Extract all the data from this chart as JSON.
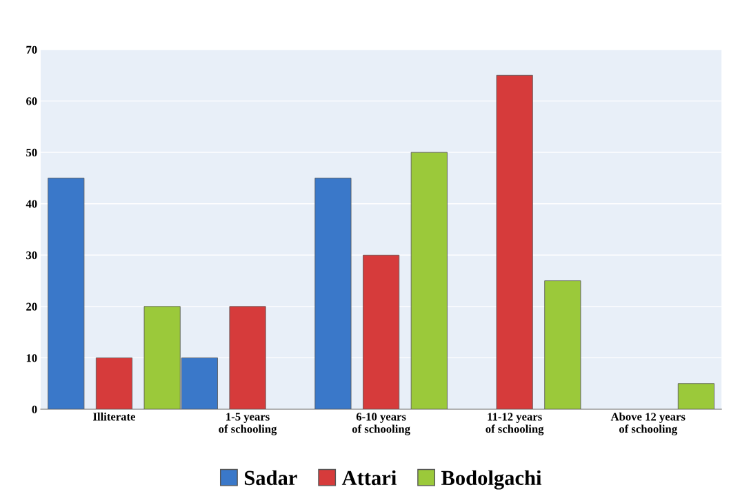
{
  "chart_data": {
    "type": "bar",
    "categories": [
      "Illiterate",
      "1-5 years\nof schooling",
      "6-10 years\nof schooling",
      "11-12 years\nof schooling",
      "Above 12 years\nof schooling"
    ],
    "series": [
      {
        "name": "Sadar",
        "color": "#3a78c9",
        "values": [
          45,
          10,
          45,
          0,
          0
        ]
      },
      {
        "name": "Attari",
        "color": "#d63b3b",
        "values": [
          10,
          20,
          30,
          65,
          0
        ]
      },
      {
        "name": "Bodolgachi",
        "color": "#9bc93a",
        "values": [
          20,
          0,
          50,
          25,
          5
        ]
      }
    ],
    "ylim": [
      0,
      70
    ],
    "yticks": [
      0,
      10,
      20,
      30,
      40,
      50,
      60,
      70
    ],
    "grid": "y",
    "legend": "bottom"
  }
}
